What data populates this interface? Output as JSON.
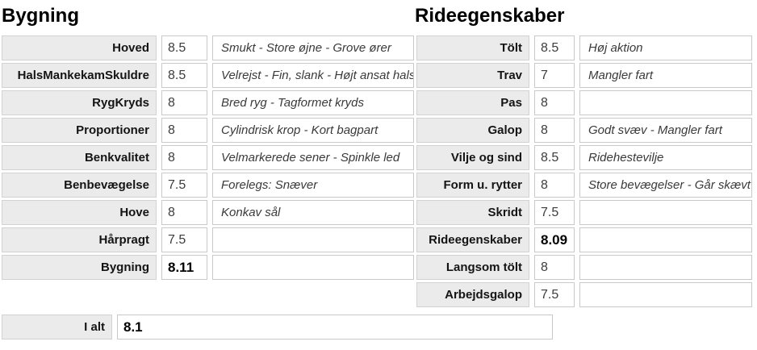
{
  "left_table": {
    "title": "Bygning",
    "rows": [
      {
        "label": "Hoved",
        "score": "8.5",
        "comment": "Smukt - Store øjne - Grove ører",
        "is_total": false
      },
      {
        "label": "HalsMankekamSkuldre",
        "score": "8.5",
        "comment": "Velrejst - Fin, slank - Højt ansat hals",
        "is_total": false
      },
      {
        "label": "RygKryds",
        "score": "8",
        "comment": "Bred ryg - Tagformet kryds",
        "is_total": false
      },
      {
        "label": "Proportioner",
        "score": "8",
        "comment": "Cylindrisk krop - Kort bagpart",
        "is_total": false
      },
      {
        "label": "Benkvalitet",
        "score": "8",
        "comment": "Velmarkerede sener - Spinkle led",
        "is_total": false
      },
      {
        "label": "Benbevægelse",
        "score": "7.5",
        "comment": "Forelegs: Snæver",
        "is_total": false
      },
      {
        "label": "Hove",
        "score": "8",
        "comment": "Konkav sål",
        "is_total": false
      },
      {
        "label": "Hårpragt",
        "score": "7.5",
        "comment": "",
        "is_total": false
      },
      {
        "label": "Bygning",
        "score": "8.11",
        "comment": "",
        "is_total": true
      }
    ]
  },
  "right_table": {
    "title": "Rideegenskaber",
    "rows": [
      {
        "label": "Tölt",
        "score": "8.5",
        "comment": "Høj aktion",
        "is_total": false
      },
      {
        "label": "Trav",
        "score": "7",
        "comment": "Mangler fart",
        "is_total": false
      },
      {
        "label": "Pas",
        "score": "8",
        "comment": "",
        "is_total": false
      },
      {
        "label": "Galop",
        "score": "8",
        "comment": "Godt svæv - Mangler fart",
        "is_total": false
      },
      {
        "label": "Vilje og sind",
        "score": "8.5",
        "comment": "Ridehestevilje",
        "is_total": false
      },
      {
        "label": "Form u. rytter",
        "score": "8",
        "comment": "Store bevægelser - Går skævt",
        "is_total": false
      },
      {
        "label": "Skridt",
        "score": "7.5",
        "comment": "",
        "is_total": false
      },
      {
        "label": "Rideegenskaber",
        "score": "8.09",
        "comment": "",
        "is_total": true
      },
      {
        "label": "Langsom tölt",
        "score": "8",
        "comment": "",
        "is_total": false
      },
      {
        "label": "Arbejdsgalop",
        "score": "7.5",
        "comment": "",
        "is_total": false
      }
    ]
  },
  "total_row": {
    "label": "I alt",
    "value": "8.1"
  },
  "colors": {
    "label_cell_background": "#ebebeb",
    "cell_border": "#c9c9c9",
    "text": "#000000",
    "secondary_text": "#3a3a3a"
  }
}
